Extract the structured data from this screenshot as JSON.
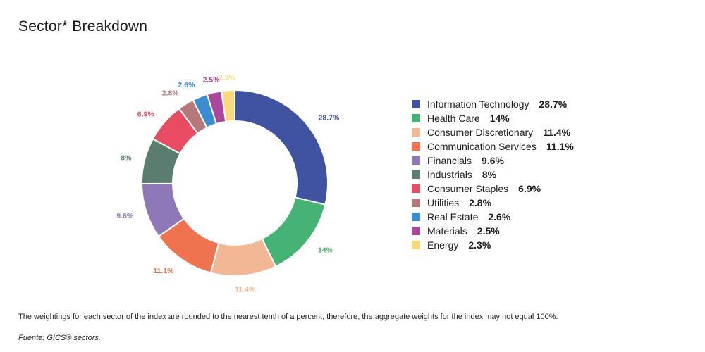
{
  "title": "Sector* Breakdown",
  "footnote": "The weightings for each sector of the index are rounded to the nearest tenth of a percent; therefore, the aggregate weights for the index may not equal 100%.",
  "source": "Fuente: GICS® sectors.",
  "chart_data": {
    "type": "pie",
    "title": "Sector* Breakdown",
    "donut": true,
    "legend": "right",
    "unit": "%",
    "series": [
      {
        "name": "Information Technology",
        "value": 28.7,
        "label": "28.7%",
        "color": "#4053a1"
      },
      {
        "name": "Health Care",
        "value": 14,
        "label": "14%",
        "color": "#45b374"
      },
      {
        "name": "Consumer Discretionary",
        "value": 11.4,
        "label": "11.4%",
        "color": "#f2b895"
      },
      {
        "name": "Communication Services",
        "value": 11.1,
        "label": "11.1%",
        "color": "#f0734f"
      },
      {
        "name": "Financials",
        "value": 9.6,
        "label": "9.6%",
        "color": "#8e78b8"
      },
      {
        "name": "Industrials",
        "value": 8,
        "label": "8%",
        "color": "#5a7d70"
      },
      {
        "name": "Consumer Staples",
        "value": 6.9,
        "label": "6.9%",
        "color": "#e84c62"
      },
      {
        "name": "Utilities",
        "value": 2.8,
        "label": "2.8%",
        "color": "#b5797a"
      },
      {
        "name": "Real Estate",
        "value": 2.6,
        "label": "2.6%",
        "color": "#3a8ecf"
      },
      {
        "name": "Materials",
        "value": 2.5,
        "label": "2.5%",
        "color": "#a9479d"
      },
      {
        "name": "Energy",
        "value": 2.3,
        "label": "2.3%",
        "color": "#f8d77d"
      }
    ]
  }
}
